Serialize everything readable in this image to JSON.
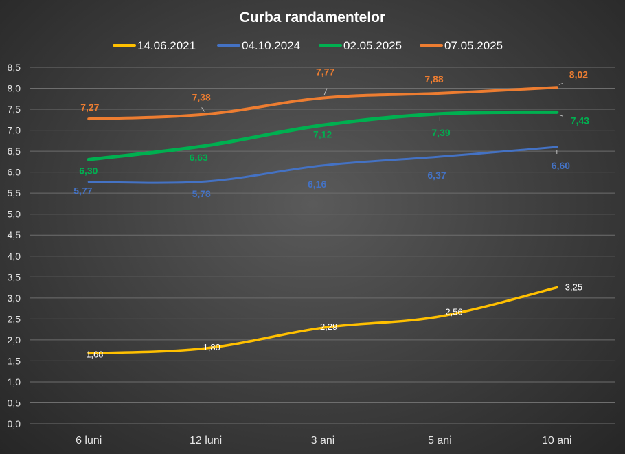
{
  "chart_data": {
    "type": "line",
    "title": "Curba randamentelor",
    "xlabel": "",
    "ylabel": "",
    "categories": [
      "6 luni",
      "12 luni",
      "3 ani",
      "5 ani",
      "10 ani"
    ],
    "ylim": [
      0,
      8.5
    ],
    "ytick_step": 0.5,
    "yticks": [
      "0,0",
      "0,5",
      "1,0",
      "1,5",
      "2,0",
      "2,5",
      "3,0",
      "3,5",
      "4,0",
      "4,5",
      "5,0",
      "5,5",
      "6,0",
      "6,5",
      "7,0",
      "7,5",
      "8,0",
      "8,5"
    ],
    "grid": true,
    "legend_position": "top",
    "series": [
      {
        "name": "14.06.2021",
        "color": "#ffc000",
        "values": [
          1.68,
          1.8,
          2.29,
          2.56,
          3.25
        ],
        "labels": [
          "1,68",
          "1,80",
          "2,29",
          "2,56",
          "3,25"
        ],
        "label_color": "#ffffff",
        "label_bold": false
      },
      {
        "name": "04.10.2024",
        "color": "#4472c4",
        "values": [
          5.77,
          5.78,
          6.16,
          6.37,
          6.6
        ],
        "labels": [
          "5,77",
          "5,78",
          "6,16",
          "6,37",
          "6,60"
        ],
        "label_color": "#4472c4",
        "label_bold": true
      },
      {
        "name": "02.05.2025",
        "color": "#00b050",
        "values": [
          6.3,
          6.63,
          7.12,
          7.39,
          7.43
        ],
        "labels": [
          "6,30",
          "6,63",
          "7,12",
          "7,39",
          "7,43"
        ],
        "label_color": "#00b050",
        "label_bold": true
      },
      {
        "name": "07.05.2025",
        "color": "#ed7d31",
        "values": [
          7.27,
          7.38,
          7.77,
          7.88,
          8.02
        ],
        "labels": [
          "7,27",
          "7,38",
          "7,77",
          "7,88",
          "8,02"
        ],
        "label_color": "#ed7d31",
        "label_bold": true
      }
    ]
  }
}
